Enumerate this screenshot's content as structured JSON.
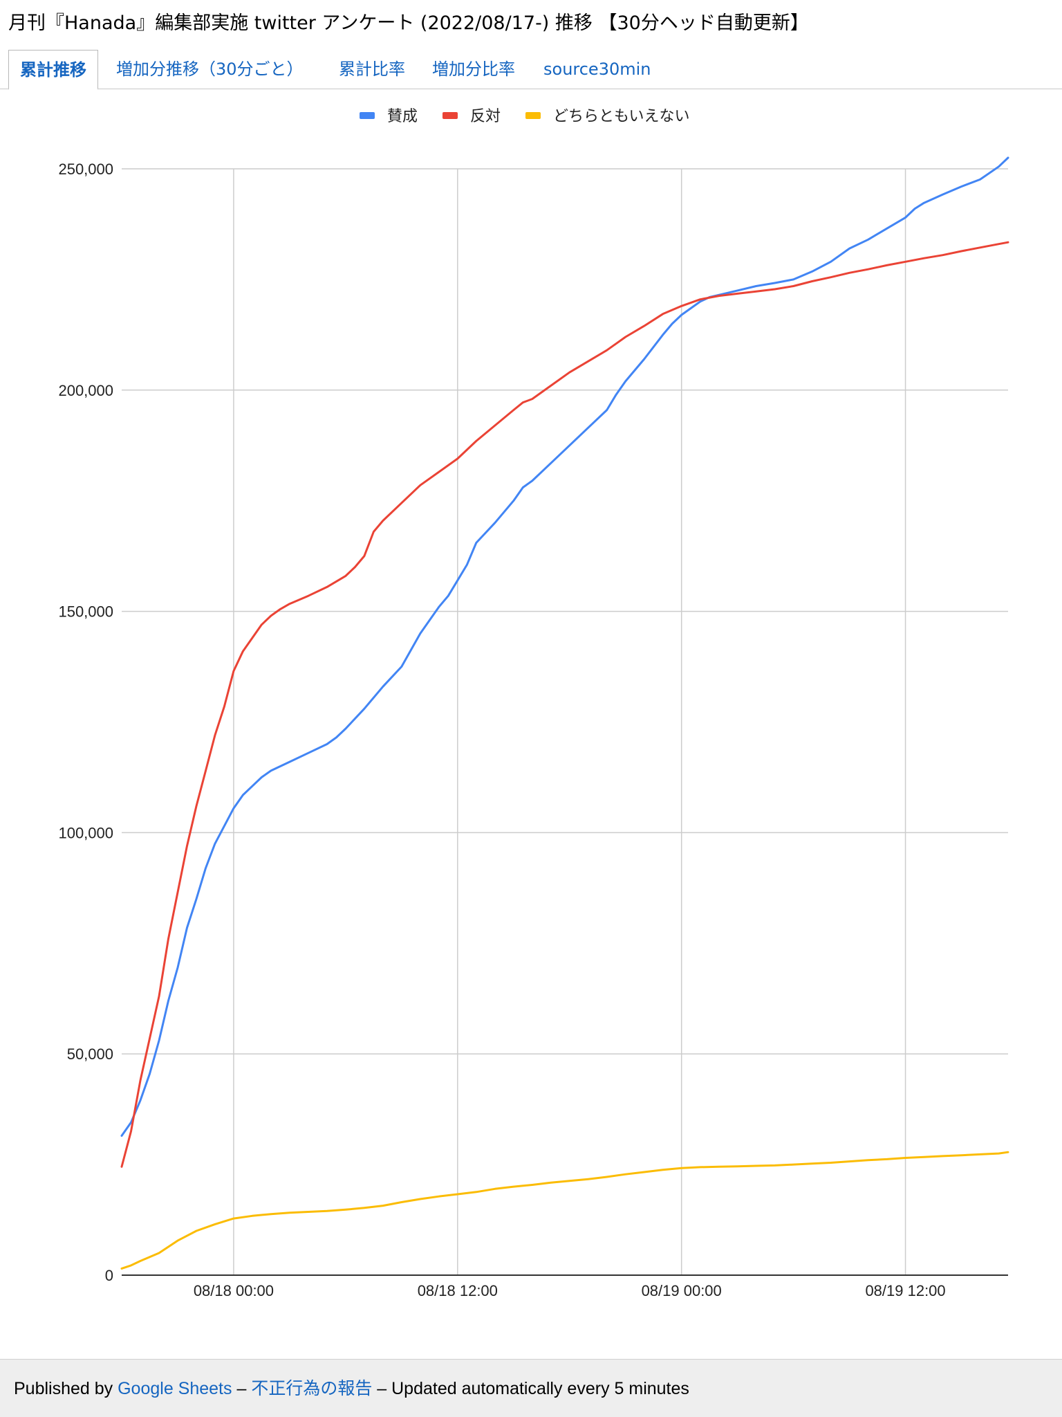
{
  "title": "月刊『Hanada』編集部実施 twitter アンケート (2022/08/17-) 推移 【30分ヘッド自動更新】",
  "tabs": [
    {
      "label": "累計推移",
      "active": true
    },
    {
      "label": "増加分推移（30分ごと）",
      "active": false
    },
    {
      "label": "累計比率",
      "active": false
    },
    {
      "label": "増加分比率",
      "active": false
    },
    {
      "label": "source30min",
      "active": false
    }
  ],
  "chart_data": {
    "type": "line",
    "title": "",
    "xlabel": "",
    "ylabel": "",
    "ylim": [
      0,
      250000
    ],
    "yticks": [
      "0",
      "50,000",
      "100,000",
      "150,000",
      "200,000",
      "250,000"
    ],
    "yticks_values": [
      0,
      50000,
      100000,
      150000,
      200000,
      250000
    ],
    "xlim_hours": [
      -6,
      41.5
    ],
    "x_unit": "hours from 08/18 00:00",
    "xticks": [
      "08/18 00:00",
      "08/18 12:00",
      "08/19 00:00",
      "08/19 12:00"
    ],
    "xticks_values": [
      0,
      12,
      24,
      36
    ],
    "grid": true,
    "legend_position": "top",
    "series": [
      {
        "name": "賛成",
        "color": "#4285f4",
        "points": [
          [
            -6,
            31500
          ],
          [
            -5.5,
            34500
          ],
          [
            -5,
            39500
          ],
          [
            -4.5,
            45500
          ],
          [
            -4,
            53000
          ],
          [
            -3.5,
            62000
          ],
          [
            -3,
            69500
          ],
          [
            -2.5,
            78500
          ],
          [
            -2,
            85000
          ],
          [
            -1.5,
            92000
          ],
          [
            -1,
            97500
          ],
          [
            -0.5,
            101500
          ],
          [
            0,
            105500
          ],
          [
            0.5,
            108500
          ],
          [
            1,
            110500
          ],
          [
            1.5,
            112500
          ],
          [
            2,
            114000
          ],
          [
            3,
            116000
          ],
          [
            4,
            118000
          ],
          [
            5,
            120000
          ],
          [
            5.5,
            121500
          ],
          [
            6,
            123500
          ],
          [
            7,
            128000
          ],
          [
            8,
            133000
          ],
          [
            9,
            137500
          ],
          [
            10,
            145000
          ],
          [
            11,
            151000
          ],
          [
            11.5,
            153500
          ],
          [
            12,
            157000
          ],
          [
            12.5,
            160500
          ],
          [
            13,
            165500
          ],
          [
            14,
            170000
          ],
          [
            15,
            175000
          ],
          [
            15.5,
            178000
          ],
          [
            16,
            179500
          ],
          [
            17,
            183500
          ],
          [
            18,
            187500
          ],
          [
            19,
            191500
          ],
          [
            20,
            195500
          ],
          [
            20.5,
            199000
          ],
          [
            21,
            202000
          ],
          [
            22,
            207000
          ],
          [
            23,
            212500
          ],
          [
            23.5,
            215000
          ],
          [
            24,
            217000
          ],
          [
            25,
            220000
          ],
          [
            25.5,
            221000
          ],
          [
            26,
            221500
          ],
          [
            27,
            222500
          ],
          [
            28,
            223500
          ],
          [
            29,
            224200
          ],
          [
            30,
            225000
          ],
          [
            31,
            226800
          ],
          [
            32,
            229000
          ],
          [
            33,
            232000
          ],
          [
            34,
            234000
          ],
          [
            35,
            236500
          ],
          [
            36,
            239000
          ],
          [
            36.5,
            241000
          ],
          [
            37,
            242300
          ],
          [
            38,
            244200
          ],
          [
            39,
            246000
          ],
          [
            40,
            247600
          ],
          [
            41,
            250500
          ],
          [
            41.5,
            252500
          ]
        ]
      },
      {
        "name": "反対",
        "color": "#ea4335",
        "points": [
          [
            -6,
            24500
          ],
          [
            -5.5,
            32500
          ],
          [
            -5,
            44000
          ],
          [
            -4.5,
            53500
          ],
          [
            -4,
            63000
          ],
          [
            -3.5,
            76000
          ],
          [
            -3,
            86500
          ],
          [
            -2.5,
            97000
          ],
          [
            -2,
            106000
          ],
          [
            -1.5,
            114000
          ],
          [
            -1,
            122000
          ],
          [
            -0.5,
            128500
          ],
          [
            0,
            136500
          ],
          [
            0.5,
            141000
          ],
          [
            1,
            144000
          ],
          [
            1.5,
            147000
          ],
          [
            2,
            149000
          ],
          [
            2.5,
            150500
          ],
          [
            3,
            151700
          ],
          [
            4,
            153500
          ],
          [
            5,
            155500
          ],
          [
            6,
            158000
          ],
          [
            6.5,
            160000
          ],
          [
            7,
            162500
          ],
          [
            7.5,
            168000
          ],
          [
            8,
            170500
          ],
          [
            9,
            174500
          ],
          [
            10,
            178500
          ],
          [
            11,
            181500
          ],
          [
            12,
            184500
          ],
          [
            13,
            188500
          ],
          [
            14,
            192000
          ],
          [
            15,
            195500
          ],
          [
            15.5,
            197200
          ],
          [
            16,
            198000
          ],
          [
            17,
            201000
          ],
          [
            18,
            204000
          ],
          [
            19,
            206500
          ],
          [
            20,
            209000
          ],
          [
            21,
            212000
          ],
          [
            22,
            214500
          ],
          [
            23,
            217200
          ],
          [
            24,
            219000
          ],
          [
            25,
            220500
          ],
          [
            26,
            221300
          ],
          [
            27,
            221800
          ],
          [
            28,
            222300
          ],
          [
            29,
            222800
          ],
          [
            30,
            223500
          ],
          [
            31,
            224600
          ],
          [
            32,
            225500
          ],
          [
            33,
            226500
          ],
          [
            34,
            227300
          ],
          [
            35,
            228200
          ],
          [
            36,
            229000
          ],
          [
            37,
            229800
          ],
          [
            38,
            230500
          ],
          [
            39,
            231400
          ],
          [
            40,
            232200
          ],
          [
            41,
            233000
          ],
          [
            41.5,
            233400
          ]
        ]
      },
      {
        "name": "どちらともいえない",
        "color": "#fbbc04",
        "points": [
          [
            -6,
            1500
          ],
          [
            -5.5,
            2200
          ],
          [
            -5,
            3200
          ],
          [
            -4,
            5000
          ],
          [
            -3,
            7800
          ],
          [
            -2,
            10000
          ],
          [
            -1,
            11500
          ],
          [
            0,
            12800
          ],
          [
            1,
            13400
          ],
          [
            2,
            13800
          ],
          [
            3,
            14100
          ],
          [
            4,
            14300
          ],
          [
            5,
            14500
          ],
          [
            6,
            14800
          ],
          [
            7,
            15200
          ],
          [
            8,
            15700
          ],
          [
            9,
            16500
          ],
          [
            10,
            17200
          ],
          [
            11,
            17800
          ],
          [
            12,
            18300
          ],
          [
            13,
            18800
          ],
          [
            14,
            19500
          ],
          [
            15,
            20000
          ],
          [
            16,
            20400
          ],
          [
            17,
            20900
          ],
          [
            18,
            21300
          ],
          [
            19,
            21700
          ],
          [
            20,
            22200
          ],
          [
            21,
            22800
          ],
          [
            22,
            23300
          ],
          [
            23,
            23800
          ],
          [
            24,
            24200
          ],
          [
            25,
            24400
          ],
          [
            26,
            24500
          ],
          [
            27,
            24600
          ],
          [
            28,
            24700
          ],
          [
            29,
            24800
          ],
          [
            30,
            25000
          ],
          [
            31,
            25200
          ],
          [
            32,
            25400
          ],
          [
            33,
            25700
          ],
          [
            34,
            26000
          ],
          [
            35,
            26200
          ],
          [
            36,
            26500
          ],
          [
            37,
            26700
          ],
          [
            38,
            26900
          ],
          [
            39,
            27100
          ],
          [
            40,
            27300
          ],
          [
            41,
            27500
          ],
          [
            41.5,
            27800
          ]
        ]
      }
    ]
  },
  "footer": {
    "published_by": "Published by ",
    "google_sheets": "Google Sheets",
    "sep1": " – ",
    "report_abuse": "不正行為の報告",
    "sep2": " – ",
    "updated": "Updated automatically every 5 minutes"
  }
}
